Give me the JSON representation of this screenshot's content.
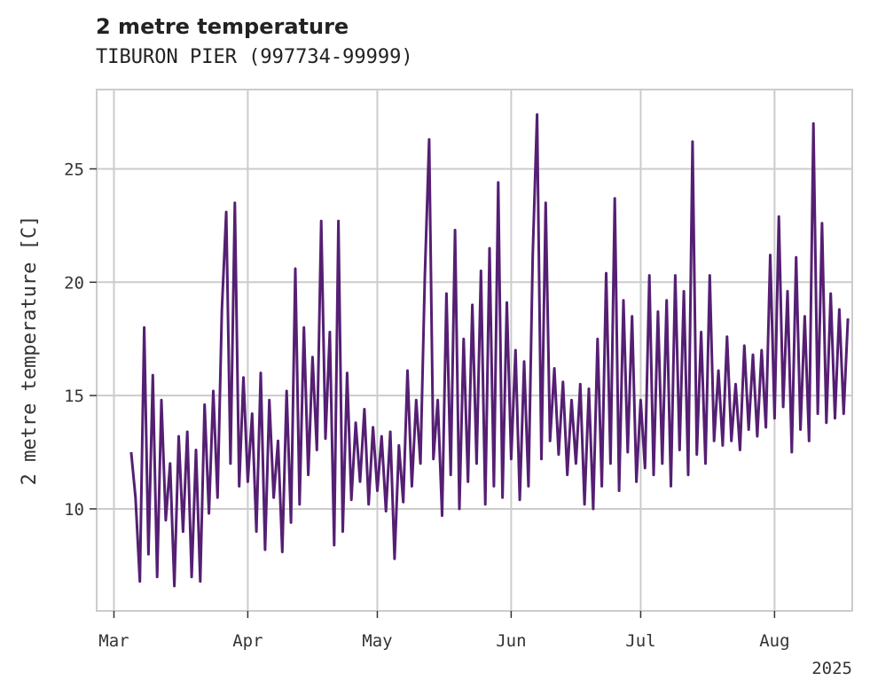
{
  "chart_data": {
    "type": "line",
    "title": "2 metre temperature",
    "subtitle": "TIBURON PIER (997734-99999)",
    "ylabel": "2 metre temperature [C]",
    "xlabel": "",
    "x_range": [
      "2025-02-25",
      "2025-08-19"
    ],
    "ylim": [
      5.5,
      28.5
    ],
    "y_ticks": [
      10,
      15,
      20,
      25
    ],
    "x_ticks": [
      {
        "date": "2025-03-01",
        "label": "Mar"
      },
      {
        "date": "2025-04-01",
        "label": "Apr"
      },
      {
        "date": "2025-05-01",
        "label": "May"
      },
      {
        "date": "2025-06-01",
        "label": "Jun"
      },
      {
        "date": "2025-07-01",
        "label": "Jul"
      },
      {
        "date": "2025-08-01",
        "label": "Aug"
      }
    ],
    "x_offset_label": "2025",
    "grid": true,
    "line_color": "#551f73",
    "series": [
      {
        "name": "",
        "values": [
          [
            "2025-03-05",
            12.5
          ],
          [
            "2025-03-06",
            10.5
          ],
          [
            "2025-03-07",
            6.8
          ],
          [
            "2025-03-08",
            18.0
          ],
          [
            "2025-03-09",
            8.0
          ],
          [
            "2025-03-10",
            15.9
          ],
          [
            "2025-03-11",
            7.0
          ],
          [
            "2025-03-12",
            14.8
          ],
          [
            "2025-03-13",
            9.5
          ],
          [
            "2025-03-14",
            12.0
          ],
          [
            "2025-03-15",
            6.6
          ],
          [
            "2025-03-16",
            13.2
          ],
          [
            "2025-03-17",
            9.0
          ],
          [
            "2025-03-18",
            13.4
          ],
          [
            "2025-03-19",
            7.0
          ],
          [
            "2025-03-20",
            12.6
          ],
          [
            "2025-03-21",
            6.8
          ],
          [
            "2025-03-22",
            14.6
          ],
          [
            "2025-03-23",
            9.8
          ],
          [
            "2025-03-24",
            15.2
          ],
          [
            "2025-03-25",
            10.5
          ],
          [
            "2025-03-26",
            18.8
          ],
          [
            "2025-03-27",
            23.1
          ],
          [
            "2025-03-28",
            12.0
          ],
          [
            "2025-03-29",
            23.5
          ],
          [
            "2025-03-30",
            11.0
          ],
          [
            "2025-03-31",
            15.8
          ],
          [
            "2025-04-01",
            11.2
          ],
          [
            "2025-04-02",
            14.2
          ],
          [
            "2025-04-03",
            9.0
          ],
          [
            "2025-04-04",
            16.0
          ],
          [
            "2025-04-05",
            8.2
          ],
          [
            "2025-04-06",
            14.8
          ],
          [
            "2025-04-07",
            10.5
          ],
          [
            "2025-04-08",
            13.0
          ],
          [
            "2025-04-09",
            8.1
          ],
          [
            "2025-04-10",
            15.2
          ],
          [
            "2025-04-11",
            9.4
          ],
          [
            "2025-04-12",
            20.6
          ],
          [
            "2025-04-13",
            10.2
          ],
          [
            "2025-04-14",
            18.0
          ],
          [
            "2025-04-15",
            11.5
          ],
          [
            "2025-04-16",
            16.7
          ],
          [
            "2025-04-17",
            12.6
          ],
          [
            "2025-04-18",
            22.7
          ],
          [
            "2025-04-19",
            13.1
          ],
          [
            "2025-04-20",
            17.8
          ],
          [
            "2025-04-21",
            8.4
          ],
          [
            "2025-04-22",
            22.7
          ],
          [
            "2025-04-23",
            9.0
          ],
          [
            "2025-04-24",
            16.0
          ],
          [
            "2025-04-25",
            10.4
          ],
          [
            "2025-04-26",
            13.8
          ],
          [
            "2025-04-27",
            11.2
          ],
          [
            "2025-04-28",
            14.4
          ],
          [
            "2025-04-29",
            10.2
          ],
          [
            "2025-04-30",
            13.6
          ],
          [
            "2025-05-01",
            10.8
          ],
          [
            "2025-05-02",
            13.2
          ],
          [
            "2025-05-03",
            9.9
          ],
          [
            "2025-05-04",
            13.4
          ],
          [
            "2025-05-05",
            7.8
          ],
          [
            "2025-05-06",
            12.8
          ],
          [
            "2025-05-07",
            10.3
          ],
          [
            "2025-05-08",
            16.1
          ],
          [
            "2025-05-09",
            11.0
          ],
          [
            "2025-05-10",
            14.8
          ],
          [
            "2025-05-11",
            12.0
          ],
          [
            "2025-05-12",
            20.2
          ],
          [
            "2025-05-13",
            26.3
          ],
          [
            "2025-05-14",
            12.2
          ],
          [
            "2025-05-15",
            14.8
          ],
          [
            "2025-05-16",
            9.7
          ],
          [
            "2025-05-17",
            19.5
          ],
          [
            "2025-05-18",
            11.5
          ],
          [
            "2025-05-19",
            22.3
          ],
          [
            "2025-05-20",
            10.0
          ],
          [
            "2025-05-21",
            17.5
          ],
          [
            "2025-05-22",
            11.2
          ],
          [
            "2025-05-23",
            19.0
          ],
          [
            "2025-05-24",
            12.0
          ],
          [
            "2025-05-25",
            20.5
          ],
          [
            "2025-05-26",
            10.2
          ],
          [
            "2025-05-27",
            21.5
          ],
          [
            "2025-05-28",
            11.0
          ],
          [
            "2025-05-29",
            24.4
          ],
          [
            "2025-05-30",
            10.5
          ],
          [
            "2025-05-31",
            19.1
          ],
          [
            "2025-06-01",
            12.2
          ],
          [
            "2025-06-02",
            17.0
          ],
          [
            "2025-06-03",
            10.4
          ],
          [
            "2025-06-04",
            16.5
          ],
          [
            "2025-06-05",
            11.0
          ],
          [
            "2025-06-06",
            21.2
          ],
          [
            "2025-06-07",
            27.4
          ],
          [
            "2025-06-08",
            12.2
          ],
          [
            "2025-06-09",
            23.5
          ],
          [
            "2025-06-10",
            13.0
          ],
          [
            "2025-06-11",
            16.2
          ],
          [
            "2025-06-12",
            12.4
          ],
          [
            "2025-06-13",
            15.6
          ],
          [
            "2025-06-14",
            11.5
          ],
          [
            "2025-06-15",
            14.8
          ],
          [
            "2025-06-16",
            12.0
          ],
          [
            "2025-06-17",
            15.5
          ],
          [
            "2025-06-18",
            10.2
          ],
          [
            "2025-06-19",
            15.3
          ],
          [
            "2025-06-20",
            10.0
          ],
          [
            "2025-06-21",
            17.5
          ],
          [
            "2025-06-22",
            11.0
          ],
          [
            "2025-06-23",
            20.4
          ],
          [
            "2025-06-24",
            12.0
          ],
          [
            "2025-06-25",
            23.7
          ],
          [
            "2025-06-26",
            10.8
          ],
          [
            "2025-06-27",
            19.2
          ],
          [
            "2025-06-28",
            12.5
          ],
          [
            "2025-06-29",
            18.5
          ],
          [
            "2025-06-30",
            11.2
          ],
          [
            "2025-07-01",
            14.8
          ],
          [
            "2025-07-02",
            11.8
          ],
          [
            "2025-07-03",
            20.3
          ],
          [
            "2025-07-04",
            11.5
          ],
          [
            "2025-07-05",
            18.7
          ],
          [
            "2025-07-06",
            12.0
          ],
          [
            "2025-07-07",
            19.2
          ],
          [
            "2025-07-08",
            11.0
          ],
          [
            "2025-07-09",
            20.3
          ],
          [
            "2025-07-10",
            12.6
          ],
          [
            "2025-07-11",
            19.6
          ],
          [
            "2025-07-12",
            11.5
          ],
          [
            "2025-07-13",
            26.2
          ],
          [
            "2025-07-14",
            12.4
          ],
          [
            "2025-07-15",
            17.8
          ],
          [
            "2025-07-16",
            12.0
          ],
          [
            "2025-07-17",
            20.3
          ],
          [
            "2025-07-18",
            13.0
          ],
          [
            "2025-07-19",
            16.1
          ],
          [
            "2025-07-20",
            12.8
          ],
          [
            "2025-07-21",
            17.6
          ],
          [
            "2025-07-22",
            13.0
          ],
          [
            "2025-07-23",
            15.5
          ],
          [
            "2025-07-24",
            12.6
          ],
          [
            "2025-07-25",
            17.2
          ],
          [
            "2025-07-26",
            13.5
          ],
          [
            "2025-07-27",
            16.8
          ],
          [
            "2025-07-28",
            13.2
          ],
          [
            "2025-07-29",
            17.0
          ],
          [
            "2025-07-30",
            13.6
          ],
          [
            "2025-07-31",
            21.2
          ],
          [
            "2025-08-01",
            14.0
          ],
          [
            "2025-08-02",
            22.9
          ],
          [
            "2025-08-03",
            14.5
          ],
          [
            "2025-08-04",
            19.6
          ],
          [
            "2025-08-05",
            12.5
          ],
          [
            "2025-08-06",
            21.1
          ],
          [
            "2025-08-07",
            13.5
          ],
          [
            "2025-08-08",
            18.5
          ],
          [
            "2025-08-09",
            13.0
          ],
          [
            "2025-08-10",
            27.0
          ],
          [
            "2025-08-11",
            14.2
          ],
          [
            "2025-08-12",
            22.6
          ],
          [
            "2025-08-13",
            13.8
          ],
          [
            "2025-08-14",
            19.5
          ],
          [
            "2025-08-15",
            14.0
          ],
          [
            "2025-08-16",
            18.8
          ],
          [
            "2025-08-17",
            14.2
          ],
          [
            "2025-08-18",
            18.4
          ]
        ]
      }
    ]
  }
}
